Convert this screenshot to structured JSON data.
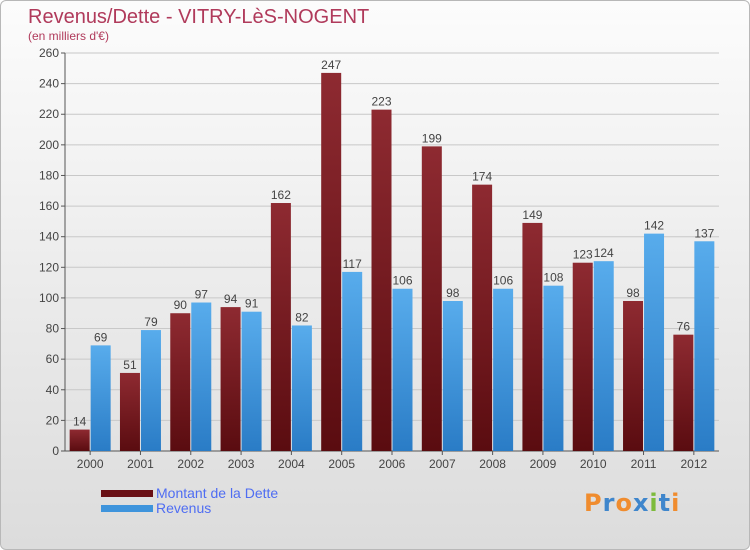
{
  "title": "Revenus/Dette - VITRY-LèS-NOGENT",
  "subtitle": "(en milliers d'€)",
  "logo": {
    "letters": [
      "P",
      "r",
      "o",
      "x",
      "i",
      "t",
      "i"
    ],
    "colors": [
      "#f08c2e",
      "#3f86cc",
      "#f08c2e",
      "#3f86cc",
      "#7dbb3c",
      "#3f86cc",
      "#f08c2e"
    ]
  },
  "colors": {
    "dette": "#7a1a1f",
    "revenus": "#3e94dc"
  },
  "chart_data": {
    "type": "bar",
    "categories": [
      "2000",
      "2001",
      "2002",
      "2003",
      "2004",
      "2005",
      "2006",
      "2007",
      "2008",
      "2009",
      "2010",
      "2011",
      "2012"
    ],
    "series": [
      {
        "name": "Montant de la Dette",
        "values": [
          14,
          51,
          90,
          94,
          162,
          247,
          223,
          199,
          174,
          149,
          123,
          98,
          76
        ]
      },
      {
        "name": "Revenus",
        "values": [
          69,
          79,
          97,
          91,
          82,
          117,
          106,
          98,
          106,
          108,
          124,
          142,
          137
        ]
      }
    ],
    "yticks": [
      0,
      20,
      40,
      60,
      80,
      100,
      120,
      140,
      160,
      180,
      200,
      220,
      240,
      260
    ],
    "ylim": [
      0,
      260
    ],
    "grid": true,
    "legend": "bottom-left"
  }
}
